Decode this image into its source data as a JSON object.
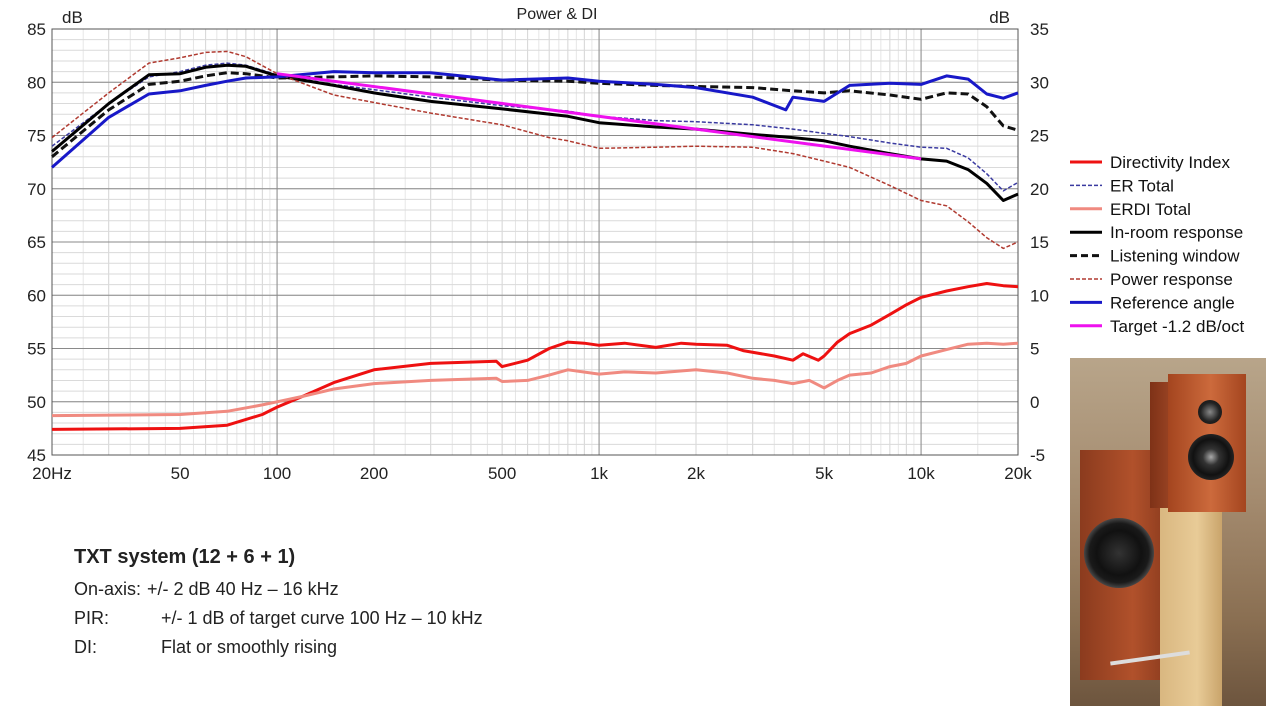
{
  "chart_data": {
    "type": "line",
    "title": "Power & DI",
    "y_left_label": "dB",
    "y_right_label": "dB",
    "x_scale": "log",
    "xlim": [
      20,
      20000
    ],
    "ylim_left": [
      45,
      85
    ],
    "ylim_right": [
      -5,
      35
    ],
    "x_ticks": [
      {
        "value": 20,
        "label": "20Hz"
      },
      {
        "value": 50,
        "label": "50"
      },
      {
        "value": 100,
        "label": "100"
      },
      {
        "value": 200,
        "label": "200"
      },
      {
        "value": 500,
        "label": "500"
      },
      {
        "value": 1000,
        "label": "1k"
      },
      {
        "value": 2000,
        "label": "2k"
      },
      {
        "value": 5000,
        "label": "5k"
      },
      {
        "value": 10000,
        "label": "10k"
      },
      {
        "value": 20000,
        "label": "20k"
      }
    ],
    "y_ticks_left": [
      "85",
      "80",
      "75",
      "70",
      "65",
      "60",
      "55",
      "50",
      "45"
    ],
    "y_ticks_right": [
      "35",
      "30",
      "25",
      "20",
      "15",
      "10",
      "5",
      "0",
      "-5"
    ],
    "grid": true,
    "legend_position": "right",
    "series": [
      {
        "name": "Directivity Index",
        "color": "#ee1111",
        "style": "solid",
        "width": 3,
        "axis": "right",
        "points": [
          [
            20,
            -2.6
          ],
          [
            50,
            -2.5
          ],
          [
            70,
            -2.2
          ],
          [
            90,
            -1.2
          ],
          [
            100,
            -0.5
          ],
          [
            120,
            0.5
          ],
          [
            150,
            1.8
          ],
          [
            200,
            3.0
          ],
          [
            300,
            3.6
          ],
          [
            480,
            3.8
          ],
          [
            500,
            3.3
          ],
          [
            600,
            3.9
          ],
          [
            700,
            5.0
          ],
          [
            800,
            5.6
          ],
          [
            900,
            5.5
          ],
          [
            1000,
            5.3
          ],
          [
            1200,
            5.5
          ],
          [
            1500,
            5.1
          ],
          [
            1800,
            5.5
          ],
          [
            2000,
            5.4
          ],
          [
            2500,
            5.3
          ],
          [
            2800,
            4.8
          ],
          [
            3500,
            4.3
          ],
          [
            4000,
            3.9
          ],
          [
            4300,
            4.5
          ],
          [
            4800,
            3.9
          ],
          [
            5000,
            4.3
          ],
          [
            5500,
            5.6
          ],
          [
            6000,
            6.4
          ],
          [
            7000,
            7.2
          ],
          [
            8000,
            8.2
          ],
          [
            9000,
            9.1
          ],
          [
            10000,
            9.8
          ],
          [
            12000,
            10.4
          ],
          [
            14000,
            10.8
          ],
          [
            16000,
            11.1
          ],
          [
            18000,
            10.9
          ],
          [
            20000,
            10.8
          ]
        ]
      },
      {
        "name": "ER Total",
        "color": "#3a3aa0",
        "style": "dashed",
        "width": 1.5,
        "axis": "left",
        "points": [
          [
            20,
            74
          ],
          [
            30,
            78
          ],
          [
            40,
            80.5
          ],
          [
            50,
            81
          ],
          [
            60,
            81.6
          ],
          [
            70,
            81.8
          ],
          [
            80,
            81.6
          ],
          [
            100,
            80.7
          ],
          [
            150,
            79.8
          ],
          [
            200,
            79.3
          ],
          [
            300,
            78.6
          ],
          [
            500,
            77.8
          ],
          [
            800,
            77.3
          ],
          [
            1000,
            76.8
          ],
          [
            1500,
            76.4
          ],
          [
            2000,
            76.3
          ],
          [
            3000,
            76.0
          ],
          [
            4000,
            75.6
          ],
          [
            5000,
            75.2
          ],
          [
            6000,
            74.9
          ],
          [
            8000,
            74.3
          ],
          [
            10000,
            73.9
          ],
          [
            12000,
            73.8
          ],
          [
            14000,
            72.9
          ],
          [
            16000,
            71.4
          ],
          [
            18000,
            69.8
          ],
          [
            20000,
            70.6
          ]
        ]
      },
      {
        "name": "ERDI Total",
        "color": "#f08a80",
        "style": "solid",
        "width": 3,
        "axis": "right",
        "points": [
          [
            20,
            -1.3
          ],
          [
            50,
            -1.2
          ],
          [
            70,
            -0.9
          ],
          [
            90,
            -0.3
          ],
          [
            100,
            0.0
          ],
          [
            120,
            0.5
          ],
          [
            150,
            1.2
          ],
          [
            200,
            1.7
          ],
          [
            300,
            2.0
          ],
          [
            480,
            2.2
          ],
          [
            500,
            1.9
          ],
          [
            600,
            2.0
          ],
          [
            700,
            2.5
          ],
          [
            800,
            3.0
          ],
          [
            1000,
            2.6
          ],
          [
            1200,
            2.8
          ],
          [
            1500,
            2.7
          ],
          [
            2000,
            3.0
          ],
          [
            2500,
            2.7
          ],
          [
            3000,
            2.2
          ],
          [
            3500,
            2.0
          ],
          [
            4000,
            1.7
          ],
          [
            4500,
            2.0
          ],
          [
            5000,
            1.3
          ],
          [
            5500,
            2.0
          ],
          [
            6000,
            2.5
          ],
          [
            7000,
            2.7
          ],
          [
            8000,
            3.3
          ],
          [
            9000,
            3.6
          ],
          [
            10000,
            4.3
          ],
          [
            12000,
            4.9
          ],
          [
            14000,
            5.4
          ],
          [
            16000,
            5.5
          ],
          [
            18000,
            5.4
          ],
          [
            20000,
            5.5
          ]
        ]
      },
      {
        "name": "In-room response",
        "color": "#000000",
        "style": "solid",
        "width": 3,
        "axis": "left",
        "points": [
          [
            20,
            73.5
          ],
          [
            30,
            78
          ],
          [
            40,
            80.7
          ],
          [
            50,
            80.8
          ],
          [
            60,
            81.4
          ],
          [
            70,
            81.6
          ],
          [
            80,
            81.5
          ],
          [
            100,
            80.6
          ],
          [
            150,
            79.7
          ],
          [
            200,
            79.0
          ],
          [
            300,
            78.2
          ],
          [
            500,
            77.5
          ],
          [
            800,
            76.8
          ],
          [
            1000,
            76.2
          ],
          [
            1500,
            75.8
          ],
          [
            2000,
            75.6
          ],
          [
            3000,
            75.1
          ],
          [
            4000,
            74.8
          ],
          [
            5000,
            74.5
          ],
          [
            6000,
            74.0
          ],
          [
            8000,
            73.3
          ],
          [
            10000,
            72.8
          ],
          [
            12000,
            72.6
          ],
          [
            14000,
            71.8
          ],
          [
            16000,
            70.5
          ],
          [
            18000,
            68.9
          ],
          [
            20000,
            69.5
          ]
        ]
      },
      {
        "name": "Listening window",
        "color": "#111111",
        "style": "dashed",
        "width": 3,
        "axis": "left",
        "points": [
          [
            20,
            73
          ],
          [
            30,
            77.4
          ],
          [
            40,
            79.8
          ],
          [
            50,
            80.1
          ],
          [
            60,
            80.6
          ],
          [
            70,
            80.9
          ],
          [
            80,
            80.8
          ],
          [
            100,
            80.4
          ],
          [
            150,
            80.5
          ],
          [
            200,
            80.6
          ],
          [
            300,
            80.5
          ],
          [
            500,
            80.2
          ],
          [
            800,
            80.1
          ],
          [
            1000,
            79.9
          ],
          [
            1500,
            79.7
          ],
          [
            2000,
            79.6
          ],
          [
            3000,
            79.5
          ],
          [
            4000,
            79.2
          ],
          [
            5000,
            79.0
          ],
          [
            6000,
            79.2
          ],
          [
            8000,
            78.8
          ],
          [
            10000,
            78.4
          ],
          [
            12000,
            79.0
          ],
          [
            14000,
            78.9
          ],
          [
            16000,
            77.7
          ],
          [
            18000,
            75.9
          ],
          [
            20000,
            75.5
          ]
        ]
      },
      {
        "name": "Power response",
        "color": "#b03a30",
        "style": "dashed",
        "width": 1.5,
        "axis": "left",
        "points": [
          [
            20,
            74.8
          ],
          [
            30,
            79
          ],
          [
            40,
            81.8
          ],
          [
            50,
            82.3
          ],
          [
            60,
            82.8
          ],
          [
            70,
            82.9
          ],
          [
            80,
            82.4
          ],
          [
            100,
            80.8
          ],
          [
            150,
            78.8
          ],
          [
            200,
            78.1
          ],
          [
            300,
            77.1
          ],
          [
            500,
            76.0
          ],
          [
            700,
            74.8
          ],
          [
            800,
            74.5
          ],
          [
            1000,
            73.8
          ],
          [
            1500,
            73.9
          ],
          [
            2000,
            74.0
          ],
          [
            3000,
            73.9
          ],
          [
            4000,
            73.3
          ],
          [
            5000,
            72.6
          ],
          [
            6000,
            72.0
          ],
          [
            8000,
            70.3
          ],
          [
            10000,
            68.9
          ],
          [
            12000,
            68.4
          ],
          [
            14000,
            66.9
          ],
          [
            16000,
            65.4
          ],
          [
            18000,
            64.4
          ],
          [
            20000,
            65.0
          ]
        ]
      },
      {
        "name": "Reference angle",
        "color": "#1818c8",
        "style": "solid",
        "width": 3,
        "axis": "left",
        "points": [
          [
            20,
            72
          ],
          [
            30,
            76.7
          ],
          [
            40,
            78.9
          ],
          [
            50,
            79.2
          ],
          [
            60,
            79.7
          ],
          [
            70,
            80.1
          ],
          [
            80,
            80.4
          ],
          [
            100,
            80.5
          ],
          [
            150,
            81.0
          ],
          [
            200,
            80.9
          ],
          [
            300,
            80.9
          ],
          [
            500,
            80.2
          ],
          [
            800,
            80.4
          ],
          [
            1000,
            80.1
          ],
          [
            1500,
            79.8
          ],
          [
            2000,
            79.5
          ],
          [
            3000,
            78.6
          ],
          [
            3800,
            77.4
          ],
          [
            4000,
            78.6
          ],
          [
            5000,
            78.2
          ],
          [
            6000,
            79.7
          ],
          [
            8000,
            79.9
          ],
          [
            10000,
            79.8
          ],
          [
            12000,
            80.6
          ],
          [
            14000,
            80.3
          ],
          [
            16000,
            78.9
          ],
          [
            18000,
            78.5
          ],
          [
            20000,
            79.0
          ]
        ]
      },
      {
        "name": "Target -1.2 dB/oct",
        "color": "#ee11ee",
        "style": "solid",
        "width": 3,
        "axis": "left",
        "points": [
          [
            100,
            80.8
          ],
          [
            10000,
            72.8
          ]
        ]
      }
    ]
  },
  "notes": {
    "heading": "TXT system (12 + 6 + 1)",
    "rows": [
      {
        "label": "On-axis:",
        "text": "+/- 2 dB 40 Hz – 16 kHz"
      },
      {
        "label": "PIR:",
        "text": "+/- 1 dB of target curve 100 Hz – 10 kHz"
      },
      {
        "label": "DI:",
        "text": "Flat or smoothly rising"
      }
    ]
  },
  "photo": {
    "subject": "speaker-on-stand-photo"
  }
}
